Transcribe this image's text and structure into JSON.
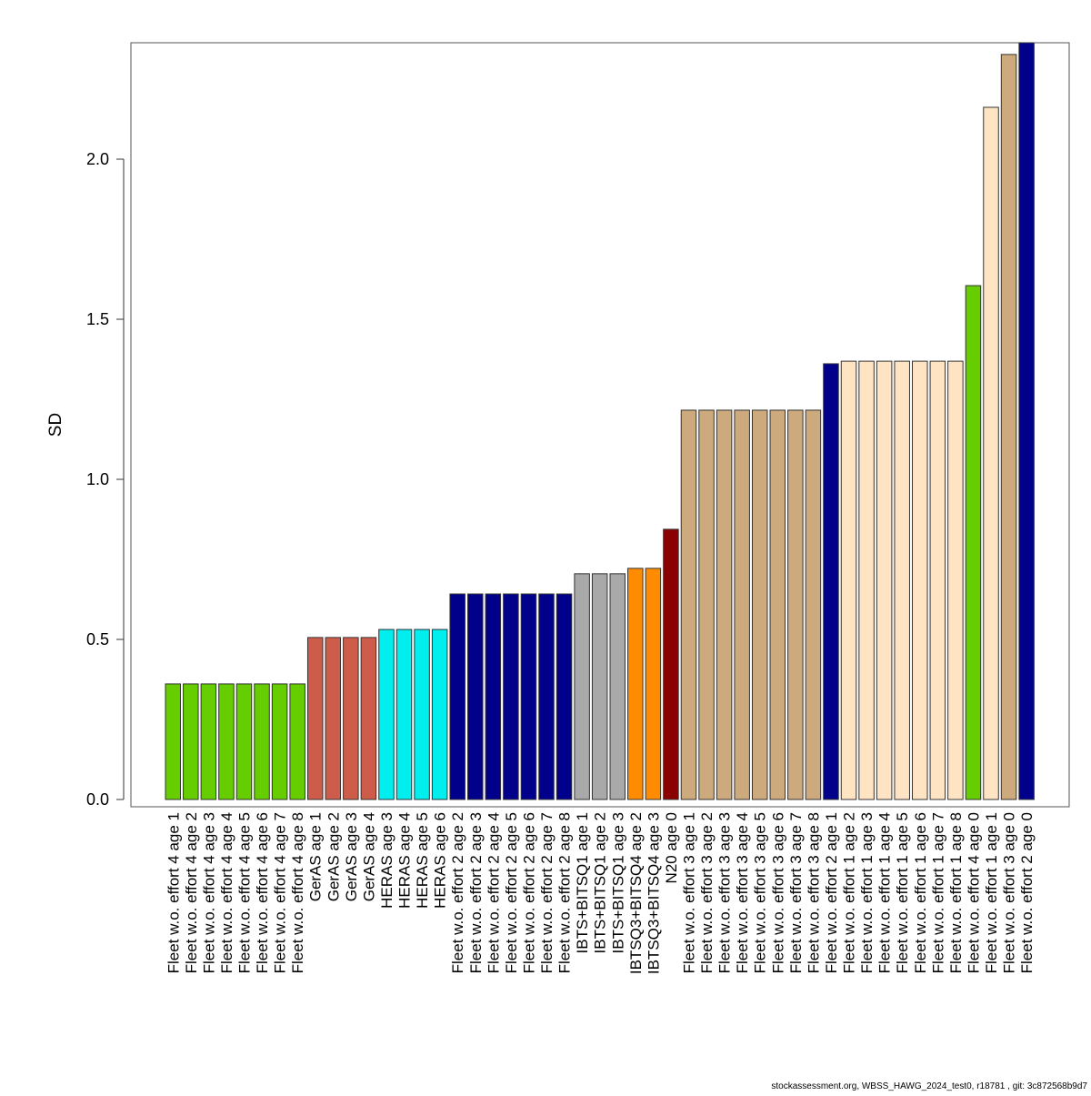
{
  "chart_data": {
    "type": "bar",
    "title": "",
    "xlabel": "",
    "ylabel": "SD",
    "ylim": [
      0,
      2.364
    ],
    "yticks": [
      "0.0",
      "0.5",
      "1.0",
      "1.5",
      "2.0"
    ],
    "grid": false,
    "legend": "none",
    "categories": [
      "Fleet w.o. effort 4 age 1",
      "Fleet w.o. effort 4 age 2",
      "Fleet w.o. effort 4 age 3",
      "Fleet w.o. effort 4 age 4",
      "Fleet w.o. effort 4 age 5",
      "Fleet w.o. effort 4 age 6",
      "Fleet w.o. effort 4 age 7",
      "Fleet w.o. effort 4 age 8",
      "GerAS age 1",
      "GerAS age 2",
      "GerAS age 3",
      "GerAS age 4",
      "HERAS age 3",
      "HERAS age 4",
      "HERAS age 5",
      "HERAS age 6",
      "Fleet w.o. effort 2 age 2",
      "Fleet w.o. effort 2 age 3",
      "Fleet w.o. effort 2 age 4",
      "Fleet w.o. effort 2 age 5",
      "Fleet w.o. effort 2 age 6",
      "Fleet w.o. effort 2 age 7",
      "Fleet w.o. effort 2 age 8",
      "IBTS+BITSQ1 age 1",
      "IBTS+BITSQ1 age 2",
      "IBTS+BITSQ1 age 3",
      "IBTSQ3+BITSQ4 age 2",
      "IBTSQ3+BITSQ4 age 3",
      "N20 age 0",
      "Fleet w.o. effort 3 age 1",
      "Fleet w.o. effort 3 age 2",
      "Fleet w.o. effort 3 age 3",
      "Fleet w.o. effort 3 age 4",
      "Fleet w.o. effort 3 age 5",
      "Fleet w.o. effort 3 age 6",
      "Fleet w.o. effort 3 age 7",
      "Fleet w.o. effort 3 age 8",
      "Fleet w.o. effort 2 age 1",
      "Fleet w.o. effort 1 age 2",
      "Fleet w.o. effort 1 age 3",
      "Fleet w.o. effort 1 age 4",
      "Fleet w.o. effort 1 age 5",
      "Fleet w.o. effort 1 age 6",
      "Fleet w.o. effort 1 age 7",
      "Fleet w.o. effort 1 age 8",
      "Fleet w.o. effort 4 age 0",
      "Fleet w.o. effort 1 age 1",
      "Fleet w.o. effort 3 age 0",
      "Fleet w.o. effort 2 age 0"
    ],
    "values": [
      0.361,
      0.361,
      0.361,
      0.361,
      0.361,
      0.361,
      0.361,
      0.361,
      0.506,
      0.506,
      0.506,
      0.506,
      0.531,
      0.531,
      0.531,
      0.531,
      0.642,
      0.642,
      0.642,
      0.642,
      0.642,
      0.642,
      0.642,
      0.705,
      0.705,
      0.705,
      0.722,
      0.722,
      0.844,
      1.216,
      1.216,
      1.216,
      1.216,
      1.216,
      1.216,
      1.216,
      1.216,
      1.361,
      1.369,
      1.369,
      1.369,
      1.369,
      1.369,
      1.369,
      1.369,
      1.605,
      2.162,
      2.327,
      2.364
    ],
    "colors": [
      "#66cd00",
      "#66cd00",
      "#66cd00",
      "#66cd00",
      "#66cd00",
      "#66cd00",
      "#66cd00",
      "#66cd00",
      "#cd5c4a",
      "#cd5c4a",
      "#cd5c4a",
      "#cd5c4a",
      "#00eeee",
      "#00eeee",
      "#00eeee",
      "#00eeee",
      "#00008b",
      "#00008b",
      "#00008b",
      "#00008b",
      "#00008b",
      "#00008b",
      "#00008b",
      "#a9a9a9",
      "#a9a9a9",
      "#a9a9a9",
      "#ff8c00",
      "#ff8c00",
      "#8b0000",
      "#cdaa7d",
      "#cdaa7d",
      "#cdaa7d",
      "#cdaa7d",
      "#cdaa7d",
      "#cdaa7d",
      "#cdaa7d",
      "#cdaa7d",
      "#00008b",
      "#ffe4c4",
      "#ffe4c4",
      "#ffe4c4",
      "#ffe4c4",
      "#ffe4c4",
      "#ffe4c4",
      "#ffe4c4",
      "#66cd00",
      "#ffe4c4",
      "#cdaa7d",
      "#00008b"
    ]
  },
  "footer": "stockassessment.org, WBSS_HAWG_2024_test0, r18781 , git: 3c872568b9d7"
}
